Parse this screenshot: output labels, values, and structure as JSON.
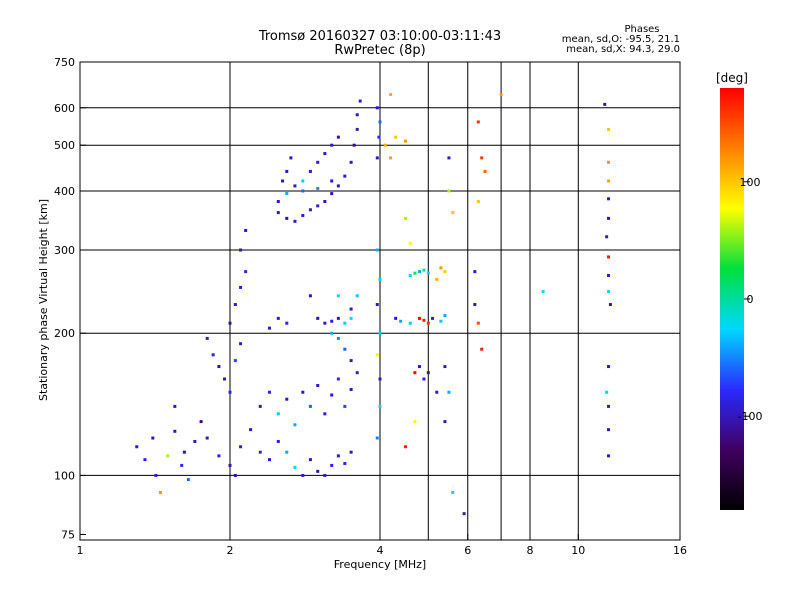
{
  "chart_data": {
    "type": "scatter",
    "title": "Tromsø 20160327 03:10:00-03:11:43",
    "subtitle": "RwPretec (8p)",
    "stats": {
      "heading": "Phases",
      "line_o": "mean, sd,O: -95.5, 21.1",
      "line_x": "mean, sd,X:  94.3, 29.0"
    },
    "xlabel": "Frequency [MHz]",
    "ylabel": "Stationary phase Virtual Height [km]",
    "x_scale": "log2",
    "y_scale": "log",
    "xlim": [
      1,
      16
    ],
    "ylim": [
      73,
      750
    ],
    "x_ticks": [
      {
        "value": 1,
        "label": "1"
      },
      {
        "value": 2,
        "label": "2"
      },
      {
        "value": 4,
        "label": "4"
      },
      {
        "value": 6,
        "label": "6"
      },
      {
        "value": 8,
        "label": "8"
      },
      {
        "value": 10,
        "label": "10"
      },
      {
        "value": 16,
        "label": "16"
      }
    ],
    "y_ticks": [
      {
        "value": 75,
        "label": "75"
      },
      {
        "value": 100,
        "label": "100"
      },
      {
        "value": 200,
        "label": "200"
      },
      {
        "value": 300,
        "label": "300"
      },
      {
        "value": 400,
        "label": "400"
      },
      {
        "value": 500,
        "label": "500"
      },
      {
        "value": 600,
        "label": "600"
      },
      {
        "value": 750,
        "label": "750"
      }
    ],
    "x_grid": [
      2,
      4,
      5,
      6,
      7,
      8,
      10
    ],
    "y_grid": [
      100,
      200,
      300,
      400,
      500,
      600
    ],
    "grid": true,
    "colorbar": {
      "title": "[deg]",
      "range": [
        -180,
        180
      ],
      "ticks": [
        {
          "value": 100,
          "label": "100"
        },
        {
          "value": 0,
          "label": "0"
        },
        {
          "value": -100,
          "label": "-100"
        }
      ],
      "colors": [
        "#000000",
        "#400060",
        "#2a2aff",
        "#00d8ff",
        "#00e03c",
        "#ffff00",
        "#ff8000",
        "#ff0000"
      ]
    },
    "points": [
      [
        1.3,
        115,
        -100
      ],
      [
        1.35,
        108,
        -90
      ],
      [
        1.4,
        120,
        -105
      ],
      [
        1.42,
        100,
        -95
      ],
      [
        1.45,
        92,
        120
      ],
      [
        1.5,
        110,
        60
      ],
      [
        1.55,
        124,
        -100
      ],
      [
        1.6,
        105,
        -80
      ],
      [
        1.62,
        112,
        -110
      ],
      [
        1.65,
        98,
        -60
      ],
      [
        1.7,
        118,
        -100
      ],
      [
        1.75,
        130,
        -120
      ],
      [
        1.55,
        140,
        -100
      ],
      [
        1.8,
        195,
        -100
      ],
      [
        1.85,
        180,
        -90
      ],
      [
        1.9,
        170,
        -110
      ],
      [
        1.95,
        160,
        -100
      ],
      [
        2.0,
        150,
        -85
      ],
      [
        2.05,
        175,
        -70
      ],
      [
        2.1,
        190,
        -100
      ],
      [
        2.0,
        210,
        -110
      ],
      [
        2.05,
        230,
        -100
      ],
      [
        2.1,
        250,
        -95
      ],
      [
        2.15,
        270,
        -90
      ],
      [
        2.1,
        300,
        -100
      ],
      [
        2.15,
        330,
        -105
      ],
      [
        1.8,
        120,
        -100
      ],
      [
        1.9,
        110,
        -95
      ],
      [
        2.0,
        105,
        -100
      ],
      [
        2.05,
        100,
        -110
      ],
      [
        2.1,
        115,
        -90
      ],
      [
        2.2,
        125,
        -100
      ],
      [
        2.3,
        112,
        -85
      ],
      [
        2.4,
        108,
        -100
      ],
      [
        2.5,
        118,
        -95
      ],
      [
        2.6,
        112,
        -40
      ],
      [
        2.7,
        104,
        -20
      ],
      [
        2.8,
        100,
        -100
      ],
      [
        2.9,
        108,
        -100
      ],
      [
        3.0,
        102,
        -110
      ],
      [
        3.1,
        100,
        -100
      ],
      [
        3.2,
        105,
        -95
      ],
      [
        3.3,
        110,
        -100
      ],
      [
        3.4,
        106,
        -90
      ],
      [
        3.5,
        112,
        -100
      ],
      [
        2.3,
        140,
        -100
      ],
      [
        2.4,
        150,
        -90
      ],
      [
        2.5,
        135,
        -30
      ],
      [
        2.6,
        145,
        -100
      ],
      [
        2.7,
        128,
        -40
      ],
      [
        2.8,
        150,
        -100
      ],
      [
        2.9,
        140,
        -60
      ],
      [
        3.0,
        155,
        -100
      ],
      [
        3.1,
        135,
        -90
      ],
      [
        3.2,
        148,
        -100
      ],
      [
        3.3,
        160,
        -80
      ],
      [
        3.4,
        140,
        -70
      ],
      [
        3.5,
        152,
        -100
      ],
      [
        3.6,
        165,
        -95
      ],
      [
        3.5,
        175,
        -100
      ],
      [
        3.4,
        185,
        -60
      ],
      [
        3.3,
        195,
        -50
      ],
      [
        3.2,
        200,
        -40
      ],
      [
        3.4,
        210,
        -30
      ],
      [
        3.5,
        225,
        -100
      ],
      [
        3.6,
        240,
        -30
      ],
      [
        3.3,
        240,
        -20
      ],
      [
        2.4,
        205,
        -100
      ],
      [
        2.5,
        215,
        -100
      ],
      [
        2.6,
        210,
        -90
      ],
      [
        2.9,
        240,
        -100
      ],
      [
        3.0,
        215,
        -110
      ],
      [
        3.1,
        210,
        -100
      ],
      [
        3.2,
        212,
        -95
      ],
      [
        3.3,
        215,
        -100
      ],
      [
        3.5,
        215,
        -20
      ],
      [
        2.5,
        360,
        -100
      ],
      [
        2.6,
        350,
        -110
      ],
      [
        2.7,
        345,
        -100
      ],
      [
        2.8,
        355,
        -95
      ],
      [
        2.9,
        365,
        -100
      ],
      [
        3.0,
        372,
        -90
      ],
      [
        3.1,
        380,
        -100
      ],
      [
        3.2,
        395,
        -105
      ],
      [
        3.3,
        410,
        -100
      ],
      [
        3.4,
        430,
        -95
      ],
      [
        3.5,
        460,
        -100
      ],
      [
        3.55,
        500,
        -110
      ],
      [
        3.6,
        540,
        -100
      ],
      [
        3.6,
        580,
        -100
      ],
      [
        3.65,
        620,
        -95
      ],
      [
        2.5,
        380,
        -100
      ],
      [
        2.6,
        395,
        -40
      ],
      [
        2.7,
        410,
        -100
      ],
      [
        2.8,
        420,
        -30
      ],
      [
        2.9,
        440,
        -100
      ],
      [
        3.0,
        460,
        -95
      ],
      [
        3.1,
        480,
        -100
      ],
      [
        3.2,
        500,
        -100
      ],
      [
        3.3,
        520,
        -110
      ],
      [
        2.55,
        420,
        -100
      ],
      [
        2.6,
        440,
        -105
      ],
      [
        2.65,
        470,
        -100
      ],
      [
        2.8,
        400,
        -60
      ],
      [
        3.0,
        405,
        -50
      ],
      [
        3.2,
        420,
        -100
      ],
      [
        3.95,
        600,
        -100
      ],
      [
        4.0,
        560,
        -60
      ],
      [
        3.98,
        520,
        -80
      ],
      [
        3.95,
        470,
        -100
      ],
      [
        3.95,
        300,
        -40
      ],
      [
        4.0,
        260,
        -30
      ],
      [
        3.95,
        230,
        -100
      ],
      [
        4.0,
        200,
        -30
      ],
      [
        3.95,
        180,
        80
      ],
      [
        4.0,
        160,
        -100
      ],
      [
        4.0,
        140,
        -20
      ],
      [
        3.95,
        120,
        -50
      ],
      [
        4.1,
        500,
        110
      ],
      [
        4.2,
        470,
        115
      ],
      [
        4.3,
        520,
        100
      ],
      [
        4.5,
        510,
        120
      ],
      [
        4.2,
        640,
        110
      ],
      [
        4.5,
        350,
        60
      ],
      [
        4.6,
        310,
        80
      ],
      [
        4.6,
        265,
        -20
      ],
      [
        4.7,
        268,
        10
      ],
      [
        4.8,
        270,
        -40
      ],
      [
        4.9,
        272,
        0
      ],
      [
        5.0,
        268,
        -30
      ],
      [
        5.3,
        275,
        120
      ],
      [
        5.4,
        270,
        100
      ],
      [
        5.2,
        260,
        110
      ],
      [
        4.3,
        215,
        -100
      ],
      [
        4.4,
        212,
        -40
      ],
      [
        4.6,
        210,
        -30
      ],
      [
        4.8,
        215,
        180
      ],
      [
        4.9,
        213,
        170
      ],
      [
        5.0,
        210,
        160
      ],
      [
        5.1,
        215,
        -100
      ],
      [
        5.3,
        212,
        -30
      ],
      [
        5.4,
        218,
        -40
      ],
      [
        4.7,
        165,
        180
      ],
      [
        4.8,
        170,
        -100
      ],
      [
        4.9,
        160,
        -90
      ],
      [
        5.0,
        165,
        -100
      ],
      [
        5.2,
        150,
        -100
      ],
      [
        5.4,
        170,
        -100
      ],
      [
        5.5,
        150,
        -40
      ],
      [
        5.4,
        130,
        -100
      ],
      [
        4.5,
        115,
        170
      ],
      [
        4.7,
        130,
        80
      ],
      [
        5.6,
        92,
        -20
      ],
      [
        5.9,
        83,
        -100
      ],
      [
        5.5,
        470,
        -100
      ],
      [
        5.5,
        400,
        60
      ],
      [
        5.6,
        360,
        100
      ],
      [
        6.3,
        560,
        160
      ],
      [
        6.4,
        470,
        160
      ],
      [
        6.5,
        440,
        140
      ],
      [
        6.3,
        380,
        100
      ],
      [
        6.2,
        270,
        -100
      ],
      [
        6.2,
        230,
        -100
      ],
      [
        6.3,
        210,
        150
      ],
      [
        6.4,
        185,
        170
      ],
      [
        7.0,
        640,
        120
      ],
      [
        8.5,
        245,
        -20
      ],
      [
        11.3,
        610,
        -100
      ],
      [
        11.5,
        540,
        100
      ],
      [
        11.5,
        460,
        120
      ],
      [
        11.5,
        420,
        115
      ],
      [
        11.5,
        385,
        -100
      ],
      [
        11.5,
        350,
        -110
      ],
      [
        11.4,
        320,
        -100
      ],
      [
        11.5,
        290,
        170
      ],
      [
        11.5,
        265,
        -100
      ],
      [
        11.5,
        245,
        -20
      ],
      [
        11.6,
        230,
        -100
      ],
      [
        11.5,
        170,
        -100
      ],
      [
        11.4,
        150,
        -10
      ],
      [
        11.5,
        140,
        -100
      ],
      [
        11.5,
        125,
        -100
      ],
      [
        11.5,
        110,
        -100
      ]
    ]
  }
}
